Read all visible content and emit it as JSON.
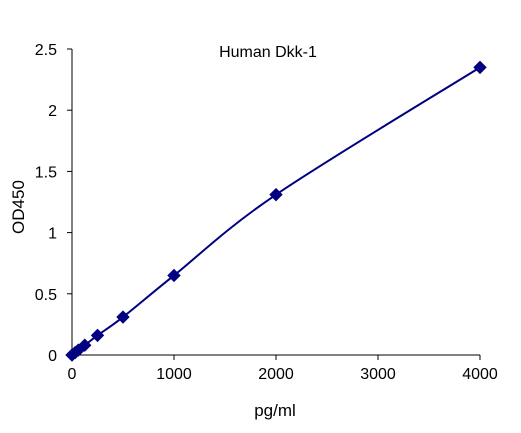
{
  "chart_data": {
    "type": "scatter",
    "title": "Human Dkk-1",
    "xlabel": "pg/ml",
    "ylabel": "OD450",
    "xlim": [
      0,
      4000
    ],
    "ylim": [
      0,
      2.5
    ],
    "x_ticks": [
      "0",
      "1000",
      "2000",
      "3000",
      "4000"
    ],
    "y_ticks": [
      "0",
      "0.5",
      "1",
      "1.5",
      "2",
      "2.5"
    ],
    "grid": false,
    "legend": false,
    "series": [
      {
        "marker": "diamond",
        "color": "#000080",
        "line": "smooth",
        "points": [
          {
            "x": 0,
            "y": 0.0
          },
          {
            "x": 31.25,
            "y": 0.02
          },
          {
            "x": 62.5,
            "y": 0.04
          },
          {
            "x": 125,
            "y": 0.08
          },
          {
            "x": 250,
            "y": 0.16
          },
          {
            "x": 500,
            "y": 0.31
          },
          {
            "x": 1000,
            "y": 0.65
          },
          {
            "x": 2000,
            "y": 1.31
          },
          {
            "x": 4000,
            "y": 2.35
          }
        ]
      }
    ]
  }
}
